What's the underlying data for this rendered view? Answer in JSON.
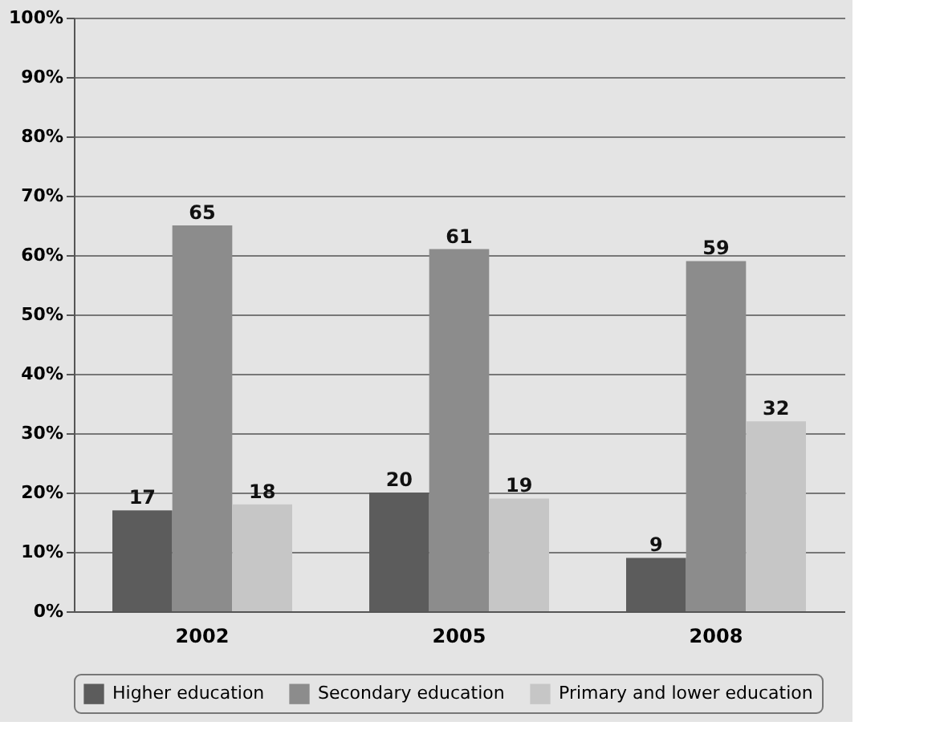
{
  "chart_data": {
    "type": "bar",
    "categories": [
      "2002",
      "2005",
      "2008"
    ],
    "series": [
      {
        "name": "Higher education",
        "color": "#5c5c5c",
        "values": [
          17,
          20,
          9
        ]
      },
      {
        "name": "Secondary education",
        "color": "#8c8c8c",
        "values": [
          65,
          61,
          59
        ]
      },
      {
        "name": "Primary and lower education",
        "color": "#c6c6c6",
        "values": [
          18,
          19,
          32
        ]
      }
    ],
    "ylim": [
      0,
      100
    ],
    "yticks": [
      {
        "value": 0,
        "label": "0%"
      },
      {
        "value": 10,
        "label": "10%"
      },
      {
        "value": 20,
        "label": "20%"
      },
      {
        "value": 30,
        "label": "30%"
      },
      {
        "value": 40,
        "label": "40%"
      },
      {
        "value": 50,
        "label": "50%"
      },
      {
        "value": 60,
        "label": "60%"
      },
      {
        "value": 70,
        "label": "70%"
      },
      {
        "value": 80,
        "label": "80%"
      },
      {
        "value": 90,
        "label": "90%"
      },
      {
        "value": 100,
        "label": "100%"
      }
    ],
    "grid": "y",
    "legend": "bottom",
    "data_labels": true
  }
}
